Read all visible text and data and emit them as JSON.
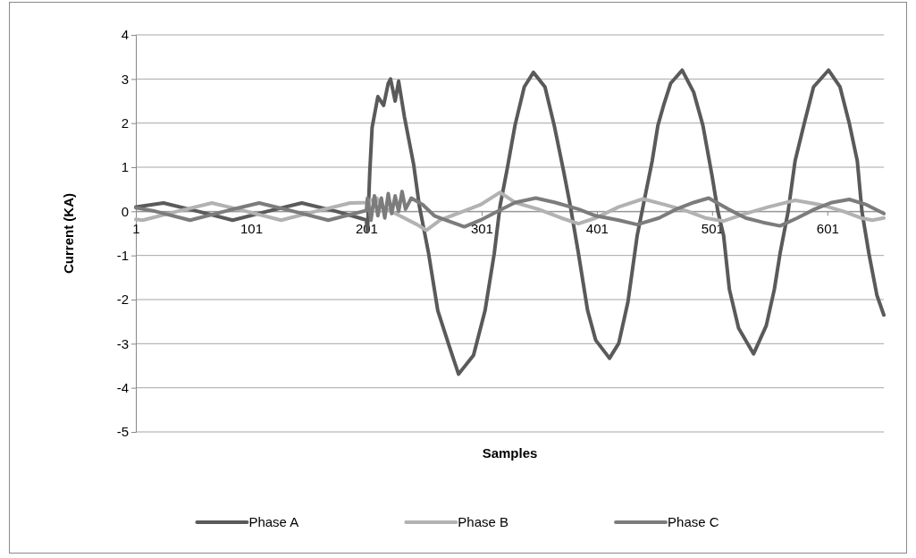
{
  "chart_data": {
    "type": "line",
    "xlabel": "Samples",
    "ylabel": "Current (KA)",
    "xlim": [
      1,
      650
    ],
    "xticks": [
      1,
      101,
      201,
      301,
      401,
      501,
      601
    ],
    "ylim": [
      -5,
      4
    ],
    "yticks": [
      -5,
      -4,
      -3,
      -2,
      -1,
      0,
      1,
      2,
      3,
      4
    ],
    "grid": "y",
    "legend": "bottom",
    "marker": "none",
    "line_style": "solid",
    "series": [
      {
        "name": "Phase A",
        "color": "#5a5a5a",
        "x": [
          1,
          25,
          55,
          85,
          115,
          145,
          175,
          195,
          201,
          202,
          204,
          206,
          211,
          216,
          220,
          222,
          226,
          229,
          234,
          242,
          247,
          255,
          263,
          273,
          281,
          294,
          304,
          312,
          317,
          323,
          330,
          338,
          346,
          356,
          364,
          372,
          378,
          385,
          393,
          400,
          412,
          420,
          428,
          436,
          441,
          449,
          454,
          459,
          465,
          475,
          485,
          493,
          501,
          506,
          511,
          516,
          524,
          537,
          548,
          555,
          560,
          567,
          573,
          581,
          589,
          602,
          612,
          620,
          627,
          631,
          637,
          644,
          650
        ],
        "values": [
          0.1,
          0.19,
          0,
          -0.2,
          0,
          0.19,
          0,
          -0.15,
          -0.2,
          -0.45,
          0.9,
          1.9,
          2.6,
          2.4,
          2.9,
          3.0,
          2.5,
          2.95,
          2.15,
          1.07,
          0.12,
          -0.95,
          -2.25,
          -3.06,
          -3.69,
          -3.26,
          -2.25,
          -0.95,
          0.12,
          0.93,
          1.95,
          2.82,
          3.15,
          2.82,
          1.95,
          0.93,
          0.12,
          -0.95,
          -2.25,
          -2.92,
          -3.33,
          -2.99,
          -2.05,
          -0.55,
          0.1,
          1.14,
          1.95,
          2.41,
          2.9,
          3.2,
          2.7,
          1.95,
          0.8,
          0,
          -0.55,
          -1.77,
          -2.65,
          -3.23,
          -2.59,
          -1.77,
          -0.95,
          0,
          1.14,
          2.0,
          2.82,
          3.2,
          2.82,
          2.0,
          1.14,
          0,
          -0.95,
          -1.9,
          -2.35
        ]
      },
      {
        "name": "Phase B",
        "color": "#b2b2b2",
        "x": [
          1,
          7,
          37,
          67,
          97,
          127,
          157,
          187,
          201,
          205,
          210,
          215,
          230,
          245,
          253,
          265,
          280,
          300,
          317,
          330,
          350,
          370,
          385,
          400,
          420,
          441,
          460,
          480,
          495,
          511,
          530,
          550,
          573,
          595,
          615,
          630,
          640,
          650
        ],
        "values": [
          -0.18,
          -0.2,
          0,
          0.19,
          0,
          -0.2,
          0,
          0.19,
          0.2,
          0.25,
          0.3,
          0.1,
          -0.1,
          -0.3,
          -0.43,
          -0.2,
          -0.05,
          0.15,
          0.43,
          0.2,
          0.05,
          -0.15,
          -0.28,
          -0.15,
          0.1,
          0.28,
          0.15,
          0,
          -0.15,
          -0.22,
          -0.05,
          0.1,
          0.25,
          0.15,
          0,
          -0.15,
          -0.2,
          -0.15
        ]
      },
      {
        "name": "Phase C",
        "color": "#7c7c7c",
        "x": [
          1,
          18,
          48,
          78,
          108,
          138,
          168,
          198,
          201,
          202,
          205,
          208,
          211,
          214,
          217,
          220,
          223,
          226,
          229,
          232,
          235,
          240,
          250,
          260,
          270,
          286,
          300,
          315,
          330,
          348,
          365,
          385,
          400,
          420,
          436,
          455,
          470,
          485,
          498,
          515,
          530,
          545,
          560,
          575,
          590,
          605,
          620,
          635,
          650
        ],
        "values": [
          0.08,
          0,
          -0.2,
          0,
          0.19,
          0,
          -0.2,
          0,
          0.02,
          0.3,
          -0.2,
          0.35,
          -0.1,
          0.3,
          -0.15,
          0.4,
          -0.05,
          0.35,
          0,
          0.45,
          0.05,
          0.3,
          0.15,
          -0.1,
          -0.2,
          -0.35,
          -0.2,
          0,
          0.2,
          0.3,
          0.2,
          0.05,
          -0.1,
          -0.2,
          -0.3,
          -0.15,
          0.05,
          0.2,
          0.3,
          0.05,
          -0.15,
          -0.25,
          -0.33,
          -0.15,
          0.05,
          0.2,
          0.27,
          0.15,
          -0.05
        ]
      }
    ]
  }
}
